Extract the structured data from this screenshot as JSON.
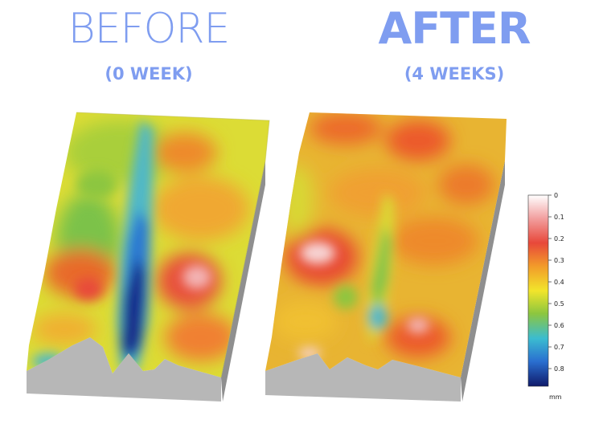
{
  "panels": {
    "before": {
      "title": "BEFORE",
      "subtitle": "(0 WEEK)"
    },
    "after": {
      "title": "AFTER",
      "subtitle": "(4 WEEKS)"
    }
  },
  "scale": {
    "ticks": [
      "0",
      "0.1",
      "0.2",
      "0.3",
      "0.4",
      "0.5",
      "0.6",
      "0.7",
      "0.8"
    ],
    "unit": "mm",
    "colors": [
      "#f7f7f7",
      "#f0b0b0",
      "#e8483a",
      "#f08e2a",
      "#f2e52b",
      "#8cc63f",
      "#3bbcd0",
      "#2a7fd4",
      "#12207a"
    ]
  }
}
